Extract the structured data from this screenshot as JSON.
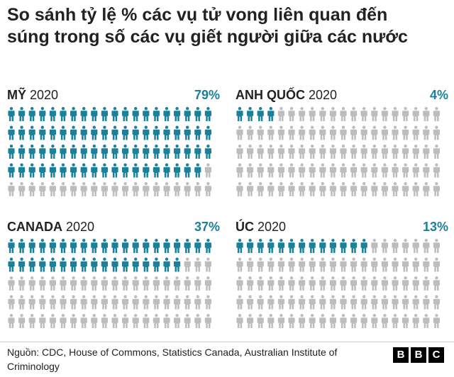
{
  "title": "So sánh tỷ lệ % các vụ tử vong liên quan đến súng trong số các vụ giết người giữa các nước",
  "colors": {
    "highlight": "#1b8099",
    "base": "#bdbdbd"
  },
  "chart_data": {
    "type": "pictogram",
    "icons_per_panel": 100,
    "columns": 20,
    "rows": 5,
    "panels": [
      {
        "country": "MỸ",
        "year": "2020",
        "value": 79,
        "label": "79%"
      },
      {
        "country": "ANH QUỐC",
        "year": "2020",
        "value": 4,
        "label": "4%"
      },
      {
        "country": "CANADA",
        "year": "2020",
        "value": 37,
        "label": "37%"
      },
      {
        "country": "ÚC",
        "year": "2020",
        "value": 13,
        "label": "13%"
      }
    ]
  },
  "footer": {
    "source": "Nguồn: CDC, House of Commons, Statistics Canada, Australian Institute of Criminology",
    "logo": [
      "B",
      "B",
      "C"
    ]
  }
}
